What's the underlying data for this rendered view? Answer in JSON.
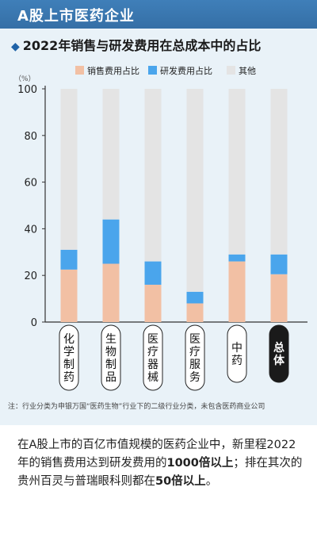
{
  "header": {
    "title": "A股上市医药企业"
  },
  "subtitle": {
    "diamond": "◆",
    "text": "2022年销售与研发费用在总成本中的占比"
  },
  "footnote": "注：行业分类为申银万国“医药生物”行业下的二级行业分类，未包含医药商业公司",
  "body_text": {
    "p1": "在A股上市的百亿市值规模的医药企业中，新里程2022年的销售费用达到研发费用的",
    "b1": "1000倍以上",
    "p2": "；排在其次的贵州百灵与普瑞眼科则都在",
    "b2": "50倍以上",
    "p3": "。"
  },
  "colors": {
    "sales": "#f2c0a4",
    "rd": "#4aa5ec",
    "other": "#e4e4e4",
    "highlight_label_bg": "#1a1a1a"
  },
  "chart_data": {
    "type": "bar",
    "stacked": true,
    "unit_label": "（%）",
    "categories": [
      "化学制药",
      "生物制品",
      "医疗器械",
      "医疗服务",
      "中药",
      "总体"
    ],
    "highlight_category": "总体",
    "series": [
      {
        "name": "销售费用占比",
        "color": "#f2c0a4",
        "values": [
          22.5,
          25,
          16,
          8,
          26,
          20.5
        ]
      },
      {
        "name": "研发费用占比",
        "color": "#4aa5ec",
        "values": [
          8.5,
          19,
          10,
          5,
          3,
          8.5
        ]
      },
      {
        "name": "其他",
        "color": "#e4e4e4",
        "values": [
          69,
          56,
          74,
          87,
          71,
          71
        ]
      }
    ],
    "ylim": [
      0,
      100
    ],
    "yticks": [
      0,
      20,
      40,
      60,
      80,
      100
    ],
    "legend_position": "top-right",
    "grid": false
  }
}
